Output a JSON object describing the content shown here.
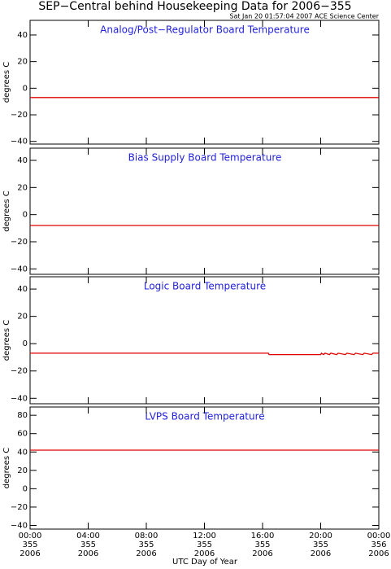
{
  "title": "SEP−Central behind Housekeeping Data for 2006−355",
  "subtitle": "Sat Jan 20 01:57:04 2007 ACE Science Center",
  "chart_data": [
    {
      "type": "line",
      "title": "Analog/Post−Regulator Board Temperature",
      "ylabel": "degrees C",
      "ylim": [
        -42,
        51
      ],
      "yticks": [
        {
          "value": -40,
          "label": "−40"
        },
        {
          "value": -20,
          "label": "−20"
        },
        0,
        20,
        40
      ],
      "series": [
        {
          "color": "#e00000",
          "x": [
            0,
            24
          ],
          "values": [
            -7,
            -7
          ]
        }
      ]
    },
    {
      "type": "line",
      "title": "Bias Supply Board Temperature",
      "ylabel": "degrees C",
      "ylim": [
        -44,
        49
      ],
      "yticks": [
        {
          "value": -40,
          "label": "−40"
        },
        {
          "value": -20,
          "label": "−20"
        },
        0,
        20,
        40
      ],
      "series": [
        {
          "color": "#e00000",
          "x": [
            0,
            24
          ],
          "values": [
            -8,
            -8
          ]
        }
      ]
    },
    {
      "type": "line",
      "title": "Logic Board Temperature",
      "ylabel": "degrees C",
      "ylim": [
        -44,
        49
      ],
      "yticks": [
        {
          "value": -40,
          "label": "−40"
        },
        {
          "value": -20,
          "label": "−20"
        },
        0,
        20,
        40
      ],
      "series": [
        {
          "color": "#e00000",
          "x": [
            0,
            16.4,
            16.45,
            20,
            20.05,
            20.2,
            20.3,
            20.6,
            20.7,
            21.1,
            21.2,
            21.7,
            21.8,
            22.3,
            22.4,
            22.9,
            23.0,
            23.5,
            23.6,
            24
          ],
          "values": [
            -7,
            -7,
            -8,
            -8,
            -7,
            -8,
            -7,
            -8,
            -7,
            -8,
            -7,
            -8,
            -7,
            -8,
            -7,
            -8,
            -7,
            -8,
            -7,
            -7
          ]
        }
      ]
    },
    {
      "type": "line",
      "title": "LVPS Board Temperature",
      "ylabel": "degrees C",
      "ylim": [
        -44,
        89
      ],
      "yticks": [
        {
          "value": -40,
          "label": "−40"
        },
        {
          "value": -20,
          "label": "−20"
        },
        0,
        20,
        40,
        60,
        80
      ],
      "series": [
        {
          "color": "#e00000",
          "x": [
            0,
            24
          ],
          "values": [
            42,
            42
          ]
        }
      ],
      "xlim": [
        0,
        24
      ],
      "xlabel": "UTC Day of Year",
      "xticks": [
        {
          "value": 0,
          "time": "00:00",
          "day": "355",
          "year": "2006"
        },
        {
          "value": 4,
          "time": "04:00",
          "day": "355",
          "year": "2006"
        },
        {
          "value": 8,
          "time": "08:00",
          "day": "355",
          "year": "2006"
        },
        {
          "value": 12,
          "time": "12:00",
          "day": "355",
          "year": "2006"
        },
        {
          "value": 16,
          "time": "16:00",
          "day": "355",
          "year": "2006"
        },
        {
          "value": 20,
          "time": "20:00",
          "day": "355",
          "year": "2006"
        },
        {
          "value": 24,
          "time": "00:00",
          "day": "356",
          "year": "2006"
        }
      ]
    }
  ]
}
